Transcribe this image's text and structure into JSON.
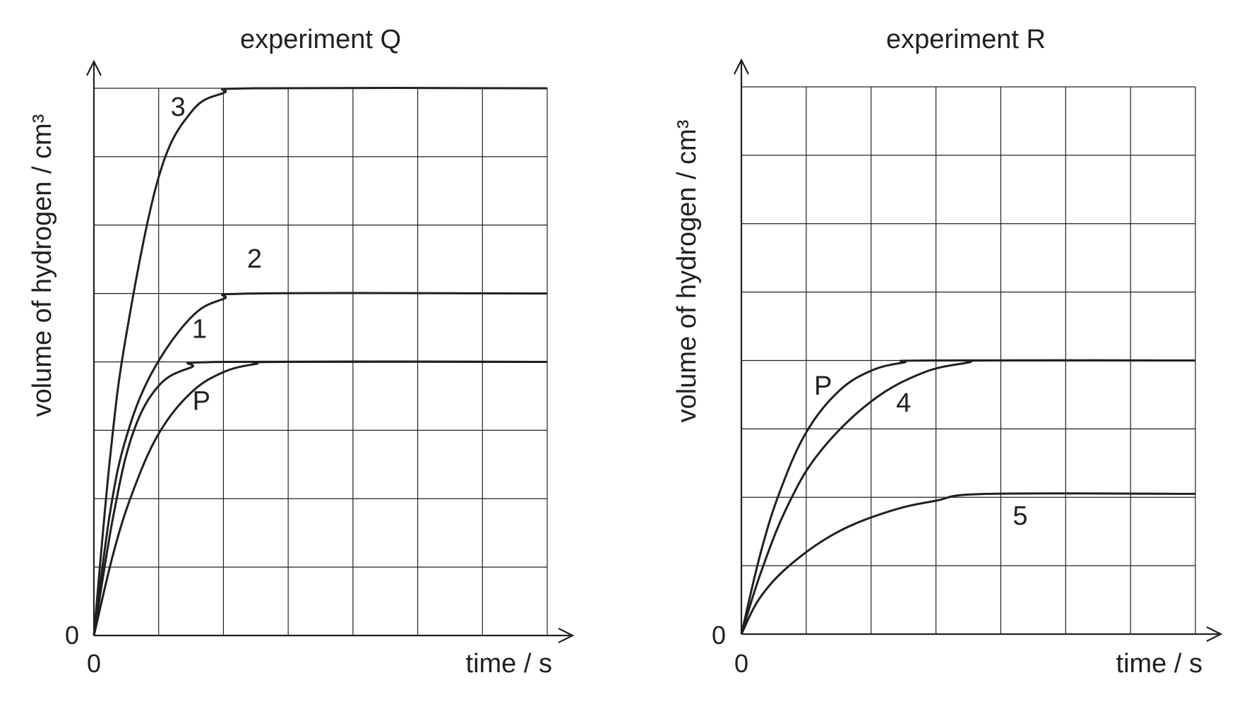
{
  "chart_data": [
    {
      "type": "line",
      "title": "experiment Q",
      "xlabel": "time / s",
      "ylabel": "volume of hydrogen / cm³",
      "x_origin_label": "0",
      "y_origin_label": "0",
      "xlim": [
        0,
        7
      ],
      "ylim": [
        0,
        8
      ],
      "grid": true,
      "series": [
        {
          "name": "3",
          "points": [
            [
              0,
              0
            ],
            [
              0.25,
              2.6
            ],
            [
              0.5,
              4.4
            ],
            [
              1.0,
              6.7
            ],
            [
              1.5,
              7.65
            ],
            [
              2.0,
              7.93
            ],
            [
              2.5,
              8.0
            ],
            [
              7,
              8.0
            ]
          ]
        },
        {
          "name": "2",
          "points": [
            [
              0,
              0
            ],
            [
              0.25,
              1.8
            ],
            [
              0.5,
              2.9
            ],
            [
              0.9,
              3.85
            ],
            [
              1.5,
              4.65
            ],
            [
              2.0,
              4.92
            ],
            [
              2.5,
              5.0
            ],
            [
              7,
              5.0
            ]
          ]
        },
        {
          "name": "1",
          "points": [
            [
              0,
              0
            ],
            [
              0.3,
              1.75
            ],
            [
              0.6,
              2.95
            ],
            [
              1.0,
              3.65
            ],
            [
              1.5,
              3.92
            ],
            [
              2.0,
              4.0
            ],
            [
              7,
              4.0
            ]
          ]
        },
        {
          "name": "P",
          "points": [
            [
              0,
              0
            ],
            [
              0.3,
              1.2
            ],
            [
              0.6,
              2.1
            ],
            [
              1.0,
              2.95
            ],
            [
              1.5,
              3.55
            ],
            [
              2.0,
              3.85
            ],
            [
              2.5,
              3.97
            ],
            [
              2.9,
              4.0
            ],
            [
              7,
              4.0
            ]
          ]
        }
      ],
      "label_positions": [
        {
          "series": "3",
          "x": 1.3,
          "y": 7.6
        },
        {
          "series": "2",
          "x": 2.48,
          "y": 5.38
        },
        {
          "series": "1",
          "x": 1.63,
          "y": 4.35
        },
        {
          "series": "P",
          "x": 1.66,
          "y": 3.3
        }
      ]
    },
    {
      "type": "line",
      "title": "experiment R",
      "xlabel": "time / s",
      "ylabel": "volume of hydrogen / cm³",
      "x_origin_label": "0",
      "y_origin_label": "0",
      "xlim": [
        0,
        7
      ],
      "ylim": [
        0,
        8
      ],
      "grid": true,
      "series": [
        {
          "name": "P",
          "points": [
            [
              0,
              0
            ],
            [
              0.3,
              1.2
            ],
            [
              0.6,
              2.1
            ],
            [
              1.0,
              2.95
            ],
            [
              1.5,
              3.55
            ],
            [
              2.0,
              3.85
            ],
            [
              2.5,
              3.97
            ],
            [
              2.9,
              4.0
            ],
            [
              7,
              4.0
            ]
          ]
        },
        {
          "name": "4",
          "points": [
            [
              0,
              0
            ],
            [
              0.3,
              0.9
            ],
            [
              0.7,
              1.85
            ],
            [
              1.2,
              2.65
            ],
            [
              2.0,
              3.4
            ],
            [
              2.8,
              3.82
            ],
            [
              3.5,
              3.97
            ],
            [
              3.8,
              4.0
            ],
            [
              7,
              4.0
            ]
          ]
        },
        {
          "name": "5",
          "points": [
            [
              0,
              0
            ],
            [
              0.3,
              0.55
            ],
            [
              0.8,
              1.05
            ],
            [
              1.5,
              1.5
            ],
            [
              2.3,
              1.8
            ],
            [
              3.0,
              1.95
            ],
            [
              3.8,
              2.05
            ],
            [
              7,
              2.05
            ]
          ]
        }
      ],
      "label_positions": [
        {
          "series": "P",
          "x": 1.26,
          "y": 3.5
        },
        {
          "series": "4",
          "x": 2.5,
          "y": 3.25
        },
        {
          "series": "5",
          "x": 4.3,
          "y": 1.6
        }
      ]
    }
  ]
}
